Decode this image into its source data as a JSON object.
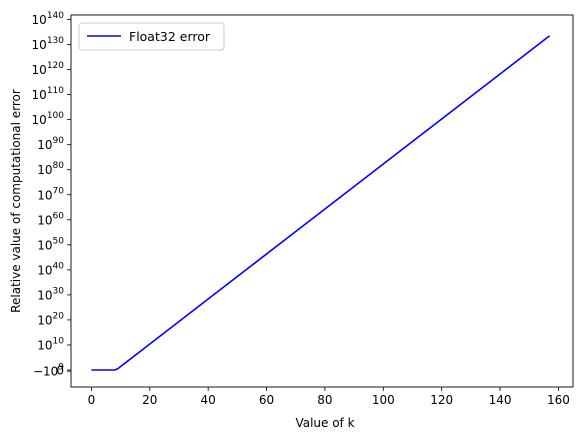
{
  "chart_data": {
    "type": "line",
    "xlabel": "Value of k",
    "ylabel": "Relative value of computational error",
    "xlim": [
      -7,
      165
    ],
    "x_ticks": [
      0,
      20,
      40,
      60,
      80,
      100,
      120,
      140,
      160
    ],
    "y_scale": "symlog",
    "y_ticks": [
      {
        "label_base": "−10",
        "exp": "9",
        "value": -1000000000.0
      },
      {
        "label_base": "0",
        "exp": "",
        "value": 0
      },
      {
        "label_base": "10",
        "exp": "10",
        "value": 10000000000.0
      },
      {
        "label_base": "10",
        "exp": "20",
        "value": 1e+20
      },
      {
        "label_base": "10",
        "exp": "30",
        "value": 1e+30
      },
      {
        "label_base": "10",
        "exp": "40",
        "value": 1e+40
      },
      {
        "label_base": "10",
        "exp": "50",
        "value": 1e+50
      },
      {
        "label_base": "10",
        "exp": "60",
        "value": 1e+60
      },
      {
        "label_base": "10",
        "exp": "70",
        "value": 1e+70
      },
      {
        "label_base": "10",
        "exp": "80",
        "value": 1e+80
      },
      {
        "label_base": "10",
        "exp": "90",
        "value": 1e+90
      },
      {
        "label_base": "10",
        "exp": "100",
        "value": 1e+100
      },
      {
        "label_base": "10",
        "exp": "110",
        "value": 1e+110
      },
      {
        "label_base": "10",
        "exp": "120",
        "value": 1e+120
      },
      {
        "label_base": "10",
        "exp": "130",
        "value": 1e+130
      },
      {
        "label_base": "10",
        "exp": "140",
        "value": 1e+140
      }
    ],
    "series": [
      {
        "name": "Float32 error",
        "color": "#0000ff",
        "x": [
          0,
          8,
          9,
          157
        ],
        "log10_y": [
          0,
          0,
          0.5,
          133.5
        ]
      }
    ],
    "legend": {
      "placement": "top-left",
      "entries": [
        "Float32 error"
      ]
    },
    "grid": false
  }
}
